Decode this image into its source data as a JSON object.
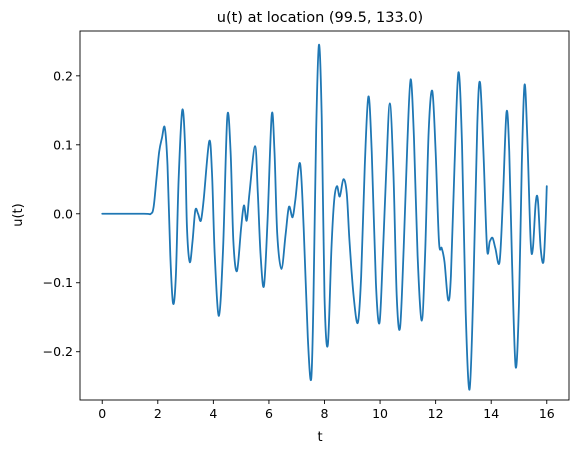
{
  "chart_data": {
    "type": "line",
    "title": "u(t) at location (99.5, 133.0)",
    "xlabel": "t",
    "ylabel": "u(t)",
    "xlim": [
      -0.8,
      16.8
    ],
    "ylim": [
      -0.27,
      0.265
    ],
    "xticks": [
      0,
      2,
      4,
      6,
      8,
      10,
      12,
      14,
      16
    ],
    "xtick_labels": [
      "0",
      "2",
      "4",
      "6",
      "8",
      "10",
      "12",
      "14",
      "16"
    ],
    "yticks": [
      -0.2,
      -0.1,
      0.0,
      0.1,
      0.2
    ],
    "ytick_labels": [
      "−0.2",
      "−0.1",
      "0.0",
      "0.1",
      "0.2"
    ],
    "grid": false,
    "series": [
      {
        "color": "#1f77b4",
        "points": [
          [
            0.0,
            0.0
          ],
          [
            1.5,
            0.0
          ],
          [
            1.75,
            0.0
          ],
          [
            1.85,
            0.01
          ],
          [
            1.95,
            0.05
          ],
          [
            2.05,
            0.09
          ],
          [
            2.15,
            0.11
          ],
          [
            2.25,
            0.125
          ],
          [
            2.35,
            0.07
          ],
          [
            2.45,
            -0.06
          ],
          [
            2.55,
            -0.13
          ],
          [
            2.65,
            -0.09
          ],
          [
            2.75,
            0.05
          ],
          [
            2.88,
            0.15
          ],
          [
            2.98,
            0.1
          ],
          [
            3.05,
            -0.02
          ],
          [
            3.15,
            -0.07
          ],
          [
            3.25,
            -0.04
          ],
          [
            3.35,
            0.005
          ],
          [
            3.45,
            0.0
          ],
          [
            3.55,
            -0.01
          ],
          [
            3.65,
            0.02
          ],
          [
            3.85,
            0.105
          ],
          [
            3.95,
            0.06
          ],
          [
            4.05,
            -0.06
          ],
          [
            4.2,
            -0.148
          ],
          [
            4.35,
            -0.05
          ],
          [
            4.5,
            0.14
          ],
          [
            4.62,
            0.09
          ],
          [
            4.72,
            -0.04
          ],
          [
            4.85,
            -0.083
          ],
          [
            5.0,
            -0.02
          ],
          [
            5.1,
            0.012
          ],
          [
            5.2,
            -0.01
          ],
          [
            5.3,
            0.03
          ],
          [
            5.5,
            0.098
          ],
          [
            5.6,
            0.03
          ],
          [
            5.7,
            -0.06
          ],
          [
            5.82,
            -0.105
          ],
          [
            5.95,
            -0.01
          ],
          [
            6.1,
            0.143
          ],
          [
            6.2,
            0.09
          ],
          [
            6.3,
            -0.03
          ],
          [
            6.45,
            -0.08
          ],
          [
            6.6,
            -0.03
          ],
          [
            6.72,
            0.01
          ],
          [
            6.85,
            -0.005
          ],
          [
            6.95,
            0.02
          ],
          [
            7.12,
            0.073
          ],
          [
            7.25,
            -0.02
          ],
          [
            7.4,
            -0.18
          ],
          [
            7.52,
            -0.24
          ],
          [
            7.6,
            -0.13
          ],
          [
            7.7,
            0.12
          ],
          [
            7.8,
            0.245
          ],
          [
            7.9,
            0.14
          ],
          [
            8.0,
            -0.12
          ],
          [
            8.12,
            -0.19
          ],
          [
            8.25,
            -0.05
          ],
          [
            8.35,
            0.02
          ],
          [
            8.45,
            0.04
          ],
          [
            8.55,
            0.025
          ],
          [
            8.68,
            0.05
          ],
          [
            8.8,
            0.03
          ],
          [
            8.9,
            -0.04
          ],
          [
            9.05,
            -0.12
          ],
          [
            9.2,
            -0.158
          ],
          [
            9.32,
            -0.09
          ],
          [
            9.45,
            0.07
          ],
          [
            9.58,
            0.17
          ],
          [
            9.7,
            0.09
          ],
          [
            9.85,
            -0.1
          ],
          [
            9.98,
            -0.158
          ],
          [
            10.1,
            -0.06
          ],
          [
            10.22,
            0.06
          ],
          [
            10.35,
            0.16
          ],
          [
            10.48,
            0.06
          ],
          [
            10.6,
            -0.12
          ],
          [
            10.72,
            -0.165
          ],
          [
            10.85,
            -0.05
          ],
          [
            10.98,
            0.1
          ],
          [
            11.1,
            0.195
          ],
          [
            11.22,
            0.11
          ],
          [
            11.35,
            -0.06
          ],
          [
            11.5,
            -0.155
          ],
          [
            11.62,
            -0.06
          ],
          [
            11.75,
            0.12
          ],
          [
            11.88,
            0.178
          ],
          [
            12.0,
            0.09
          ],
          [
            12.12,
            -0.04
          ],
          [
            12.22,
            -0.05
          ],
          [
            12.32,
            -0.07
          ],
          [
            12.45,
            -0.125
          ],
          [
            12.55,
            -0.09
          ],
          [
            12.68,
            0.07
          ],
          [
            12.82,
            0.205
          ],
          [
            12.95,
            0.1
          ],
          [
            13.08,
            -0.14
          ],
          [
            13.22,
            -0.255
          ],
          [
            13.35,
            -0.12
          ],
          [
            13.5,
            0.13
          ],
          [
            13.6,
            0.19
          ],
          [
            13.72,
            0.09
          ],
          [
            13.85,
            -0.05
          ],
          [
            13.95,
            -0.04
          ],
          [
            14.05,
            -0.035
          ],
          [
            14.15,
            -0.05
          ],
          [
            14.3,
            -0.07
          ],
          [
            14.42,
            0.02
          ],
          [
            14.55,
            0.147
          ],
          [
            14.65,
            0.09
          ],
          [
            14.75,
            -0.07
          ],
          [
            14.88,
            -0.222
          ],
          [
            15.0,
            -0.13
          ],
          [
            15.1,
            0.07
          ],
          [
            15.2,
            0.187
          ],
          [
            15.3,
            0.11
          ],
          [
            15.42,
            -0.04
          ],
          [
            15.5,
            -0.05
          ],
          [
            15.6,
            0.015
          ],
          [
            15.68,
            0.02
          ],
          [
            15.78,
            -0.05
          ],
          [
            15.88,
            -0.07
          ],
          [
            15.95,
            -0.02
          ],
          [
            16.0,
            0.04
          ]
        ]
      }
    ]
  }
}
